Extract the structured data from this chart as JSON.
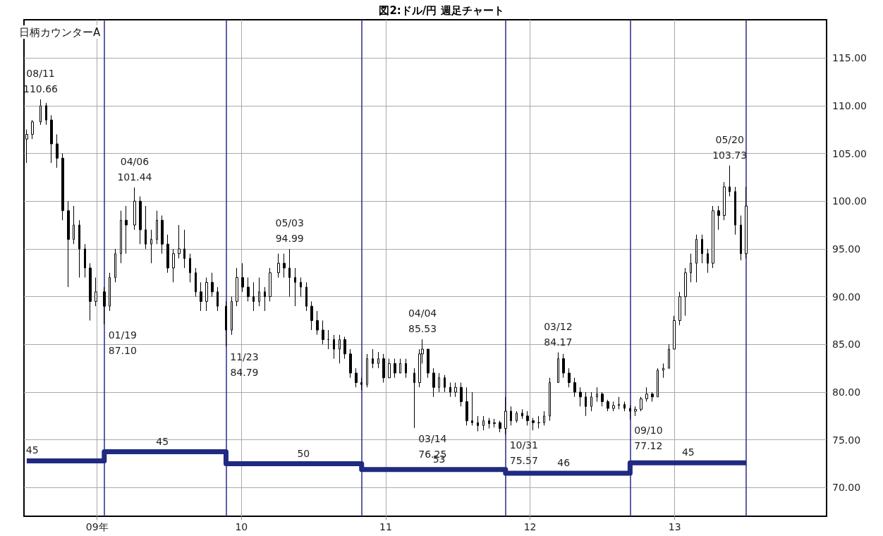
{
  "chart_data": {
    "type": "candlestick",
    "title": "図2:ドル/円 週足チャート",
    "annotations": [
      "日柄カウンターA",
      {
        "text": "08/11\n110.66",
        "x": "2008-08-11",
        "y": 110.66
      },
      {
        "text": "01/19\n87.10",
        "x": "2009-01-19",
        "y": 87.1
      },
      {
        "text": "04/06\n101.44",
        "x": "2009-04-06",
        "y": 101.44
      },
      {
        "text": "11/23\n84.79",
        "x": "2009-11-23",
        "y": 84.79
      },
      {
        "text": "05/03\n94.99",
        "x": "2010-05-03",
        "y": 94.99
      },
      {
        "text": "03/14\n76.25",
        "x": "2011-03-14",
        "y": 76.25
      },
      {
        "text": "04/04\n85.53",
        "x": "2011-04-04",
        "y": 85.53
      },
      {
        "text": "10/31\n75.57",
        "x": "2011-10-31",
        "y": 75.57
      },
      {
        "text": "03/12\n84.17",
        "x": "2012-03-12",
        "y": 84.17
      },
      {
        "text": "09/10\n77.12",
        "x": "2012-09-10",
        "y": 77.12
      },
      {
        "text": "05/20\n103.73",
        "x": "2013-05-20",
        "y": 103.73
      },
      {
        "text": "45",
        "x": "2008-07-21",
        "y": 72.8
      },
      {
        "text": "45",
        "x": "2009-06-15",
        "y": 73.75
      },
      {
        "text": "50",
        "x": "2010-06-07",
        "y": 72.5
      },
      {
        "text": "53",
        "x": "2011-05-16",
        "y": 71.9
      },
      {
        "text": "46",
        "x": "2012-03-26",
        "y": 71.5
      },
      {
        "text": "45",
        "x": "2013-02-04",
        "y": 72.6
      }
    ],
    "x": [
      "2008-07-07",
      "2008-07-21",
      "2008-08-11",
      "2008-08-25",
      "2008-09-08",
      "2008-09-22",
      "2008-10-06",
      "2008-10-20",
      "2008-11-03",
      "2008-11-17",
      "2008-12-01",
      "2008-12-15",
      "2008-12-29",
      "2009-01-19",
      "2009-02-02",
      "2009-02-16",
      "2009-03-02",
      "2009-03-16",
      "2009-04-06",
      "2009-04-20",
      "2009-05-04",
      "2009-05-18",
      "2009-06-01",
      "2009-06-15",
      "2009-06-29",
      "2009-07-13",
      "2009-07-27",
      "2009-08-10",
      "2009-08-24",
      "2009-09-07",
      "2009-09-21",
      "2009-10-05",
      "2009-10-19",
      "2009-11-02",
      "2009-11-23",
      "2009-12-07",
      "2009-12-21",
      "2010-01-04",
      "2010-01-18",
      "2010-02-01",
      "2010-02-15",
      "2010-03-01",
      "2010-03-15",
      "2010-04-05",
      "2010-04-19",
      "2010-05-03",
      "2010-05-17",
      "2010-05-31",
      "2010-06-14",
      "2010-06-28",
      "2010-07-12",
      "2010-07-26",
      "2010-08-09",
      "2010-08-23",
      "2010-09-06",
      "2010-09-20",
      "2010-10-04",
      "2010-10-18",
      "2010-11-01",
      "2010-11-15",
      "2010-11-29",
      "2010-12-13",
      "2010-12-27",
      "2011-01-10",
      "2011-01-24",
      "2011-02-07",
      "2011-02-21",
      "2011-03-14",
      "2011-03-28",
      "2011-04-04",
      "2011-04-18",
      "2011-05-02",
      "2011-05-16",
      "2011-05-30",
      "2011-06-13",
      "2011-06-27",
      "2011-07-11",
      "2011-07-25",
      "2011-08-08",
      "2011-08-22",
      "2011-09-05",
      "2011-09-19",
      "2011-10-03",
      "2011-10-17",
      "2011-10-31",
      "2011-11-14",
      "2011-11-28",
      "2011-12-12",
      "2011-12-26",
      "2012-01-09",
      "2012-01-23",
      "2012-02-06",
      "2012-02-20",
      "2012-03-12",
      "2012-03-26",
      "2012-04-09",
      "2012-04-23",
      "2012-05-07",
      "2012-05-21",
      "2012-06-04",
      "2012-06-18",
      "2012-07-02",
      "2012-07-16",
      "2012-07-30",
      "2012-08-13",
      "2012-08-27",
      "2012-09-10",
      "2012-09-24",
      "2012-10-08",
      "2012-10-22",
      "2012-11-05",
      "2012-11-19",
      "2012-12-03",
      "2012-12-17",
      "2012-12-31",
      "2013-01-14",
      "2013-01-28",
      "2013-02-11",
      "2013-02-25",
      "2013-03-11",
      "2013-03-25",
      "2013-04-08",
      "2013-04-22",
      "2013-05-06",
      "2013-05-20",
      "2013-06-03",
      "2013-06-17",
      "2013-07-01"
    ],
    "ohlc": [
      [
        106.5,
        107.5,
        104.0,
        107.0
      ],
      [
        107.0,
        108.5,
        106.5,
        108.3
      ],
      [
        108.3,
        110.66,
        108.0,
        110.0
      ],
      [
        110.0,
        110.3,
        108.0,
        108.5
      ],
      [
        108.5,
        109.0,
        104.0,
        106.0
      ],
      [
        106.0,
        107.0,
        103.5,
        104.5
      ],
      [
        104.5,
        105.0,
        98.0,
        99.0
      ],
      [
        99.0,
        100.0,
        91.0,
        96.0
      ],
      [
        96.0,
        99.5,
        95.5,
        97.5
      ],
      [
        97.5,
        98.0,
        92.0,
        95.0
      ],
      [
        95.0,
        95.5,
        92.0,
        93.0
      ],
      [
        93.0,
        93.5,
        87.5,
        89.5
      ],
      [
        89.5,
        92.0,
        89.0,
        90.5
      ],
      [
        90.5,
        91.0,
        87.1,
        89.0
      ],
      [
        89.0,
        92.5,
        88.5,
        92.0
      ],
      [
        92.0,
        95.0,
        91.5,
        94.5
      ],
      [
        94.5,
        99.0,
        93.5,
        98.0
      ],
      [
        98.0,
        99.5,
        94.5,
        97.5
      ],
      [
        97.5,
        101.44,
        97.0,
        100.0
      ],
      [
        100.0,
        100.5,
        95.5,
        97.0
      ],
      [
        97.0,
        99.5,
        95.0,
        95.5
      ],
      [
        95.5,
        97.0,
        93.5,
        96.0
      ],
      [
        96.0,
        99.0,
        95.5,
        98.0
      ],
      [
        98.0,
        98.5,
        94.5,
        95.5
      ],
      [
        95.5,
        96.5,
        92.5,
        93.0
      ],
      [
        93.0,
        95.0,
        91.5,
        94.5
      ],
      [
        94.5,
        97.5,
        94.0,
        95.0
      ],
      [
        95.0,
        97.0,
        93.0,
        94.0
      ],
      [
        94.0,
        94.5,
        91.5,
        92.5
      ],
      [
        92.5,
        93.0,
        90.0,
        90.5
      ],
      [
        90.5,
        91.5,
        88.5,
        89.5
      ],
      [
        89.5,
        92.0,
        88.5,
        91.5
      ],
      [
        91.5,
        92.5,
        90.0,
        90.5
      ],
      [
        90.5,
        91.0,
        88.5,
        89.0
      ],
      [
        89.0,
        89.5,
        84.79,
        86.5
      ],
      [
        86.5,
        90.0,
        86.0,
        89.5
      ],
      [
        89.5,
        93.0,
        89.0,
        92.0
      ],
      [
        92.0,
        93.5,
        90.5,
        91.0
      ],
      [
        91.0,
        92.0,
        89.5,
        90.0
      ],
      [
        90.0,
        91.5,
        88.5,
        89.5
      ],
      [
        89.5,
        92.0,
        89.0,
        90.5
      ],
      [
        90.5,
        91.0,
        88.5,
        90.0
      ],
      [
        90.0,
        93.0,
        89.5,
        92.5
      ],
      [
        92.5,
        94.5,
        92.0,
        93.5
      ],
      [
        93.5,
        94.5,
        92.0,
        93.0
      ],
      [
        93.0,
        94.99,
        90.0,
        92.0
      ],
      [
        92.0,
        93.0,
        89.0,
        91.5
      ],
      [
        91.5,
        92.0,
        90.0,
        91.0
      ],
      [
        91.0,
        91.5,
        88.5,
        89.0
      ],
      [
        89.0,
        89.5,
        86.5,
        87.5
      ],
      [
        87.5,
        88.5,
        86.0,
        86.5
      ],
      [
        86.5,
        87.5,
        85.0,
        85.5
      ],
      [
        85.5,
        86.5,
        84.5,
        85.5
      ],
      [
        85.5,
        86.0,
        83.5,
        84.5
      ],
      [
        84.5,
        86.0,
        83.0,
        85.5
      ],
      [
        85.5,
        85.8,
        83.5,
        84.0
      ],
      [
        84.0,
        84.5,
        81.5,
        82.0
      ],
      [
        82.0,
        82.5,
        80.5,
        81.0
      ],
      [
        81.0,
        81.5,
        80.2,
        80.8
      ],
      [
        80.8,
        84.0,
        80.5,
        83.5
      ],
      [
        83.5,
        84.5,
        82.5,
        83.0
      ],
      [
        83.0,
        84.2,
        82.5,
        83.5
      ],
      [
        83.5,
        84.0,
        81.0,
        81.5
      ],
      [
        81.5,
        83.5,
        81.5,
        83.0
      ],
      [
        83.0,
        83.5,
        81.5,
        82.0
      ],
      [
        82.0,
        83.5,
        82.0,
        83.0
      ],
      [
        83.0,
        83.5,
        81.5,
        82.0
      ],
      [
        82.0,
        82.5,
        76.25,
        81.0
      ],
      [
        81.0,
        84.5,
        80.5,
        84.0
      ],
      [
        84.0,
        85.53,
        83.0,
        84.5
      ],
      [
        84.5,
        84.5,
        81.5,
        82.0
      ],
      [
        82.0,
        82.5,
        79.5,
        80.5
      ],
      [
        80.5,
        82.0,
        80.0,
        81.5
      ],
      [
        81.5,
        81.8,
        80.0,
        80.5
      ],
      [
        80.5,
        81.0,
        79.5,
        80.0
      ],
      [
        80.0,
        81.0,
        79.5,
        80.5
      ],
      [
        80.5,
        81.0,
        78.5,
        79.0
      ],
      [
        79.0,
        80.5,
        76.5,
        77.0
      ],
      [
        77.0,
        80.0,
        76.5,
        76.8
      ],
      [
        76.8,
        77.5,
        75.9,
        76.5
      ],
      [
        76.5,
        77.5,
        76.0,
        77.0
      ],
      [
        77.0,
        77.3,
        76.2,
        76.7
      ],
      [
        76.7,
        77.2,
        76.3,
        76.8
      ],
      [
        76.8,
        77.0,
        75.8,
        76.2
      ],
      [
        76.2,
        79.5,
        75.57,
        78.0
      ],
      [
        78.0,
        78.5,
        76.5,
        77.0
      ],
      [
        77.0,
        78.0,
        76.8,
        77.8
      ],
      [
        77.8,
        78.2,
        77.2,
        77.5
      ],
      [
        77.5,
        78.0,
        76.5,
        77.0
      ],
      [
        77.0,
        77.3,
        76.0,
        76.8
      ],
      [
        76.8,
        77.5,
        76.2,
        76.8
      ],
      [
        76.8,
        78.0,
        76.5,
        77.5
      ],
      [
        77.5,
        81.5,
        77.0,
        81.0
      ],
      [
        81.0,
        84.17,
        81.0,
        83.5
      ],
      [
        83.5,
        84.0,
        81.5,
        82.0
      ],
      [
        82.0,
        82.5,
        80.5,
        81.0
      ],
      [
        81.0,
        81.5,
        79.5,
        80.0
      ],
      [
        80.0,
        80.5,
        78.5,
        79.5
      ],
      [
        79.5,
        80.0,
        77.5,
        78.5
      ],
      [
        78.5,
        80.0,
        78.0,
        79.5
      ],
      [
        79.5,
        80.5,
        79.0,
        79.8
      ],
      [
        79.8,
        80.0,
        78.5,
        79.0
      ],
      [
        79.0,
        79.2,
        78.0,
        78.3
      ],
      [
        78.3,
        79.0,
        78.0,
        78.6
      ],
      [
        78.6,
        79.5,
        78.2,
        78.7
      ],
      [
        78.7,
        79.0,
        78.0,
        78.3
      ],
      [
        78.3,
        78.6,
        77.12,
        78.0
      ],
      [
        78.0,
        78.5,
        77.5,
        78.2
      ],
      [
        78.2,
        79.5,
        78.0,
        79.3
      ],
      [
        79.3,
        80.5,
        79.0,
        79.8
      ],
      [
        79.8,
        80.0,
        79.0,
        79.5
      ],
      [
        79.5,
        82.5,
        79.5,
        82.3
      ],
      [
        82.3,
        83.0,
        81.5,
        82.5
      ],
      [
        82.5,
        85.0,
        82.5,
        84.5
      ],
      [
        84.5,
        88.0,
        84.5,
        87.5
      ],
      [
        87.5,
        90.5,
        87.0,
        90.0
      ],
      [
        90.0,
        93.0,
        88.0,
        92.5
      ],
      [
        92.5,
        94.5,
        91.5,
        93.5
      ],
      [
        93.5,
        96.5,
        91.5,
        96.0
      ],
      [
        96.0,
        96.5,
        93.5,
        94.5
      ],
      [
        94.5,
        95.0,
        92.5,
        93.5
      ],
      [
        93.5,
        99.5,
        93.0,
        99.0
      ],
      [
        99.0,
        99.5,
        97.0,
        98.5
      ],
      [
        98.5,
        102.0,
        98.0,
        101.5
      ],
      [
        101.5,
        103.73,
        100.5,
        101.0
      ],
      [
        101.0,
        101.5,
        96.5,
        97.5
      ],
      [
        97.5,
        98.5,
        93.8,
        94.5
      ],
      [
        94.5,
        101.5,
        94.0,
        99.5
      ]
    ],
    "color": "#000000",
    "series": [
      {
        "type": "step",
        "color": "#1f2a80",
        "marker": "none",
        "x": [
          "2008-07-07",
          "2009-01-19",
          "2009-11-23",
          "2010-11-01",
          "2011-10-31",
          "2012-09-10",
          "2013-07-01"
        ],
        "values": [
          72.8,
          73.75,
          72.5,
          71.9,
          71.5,
          72.6,
          72.6
        ]
      }
    ],
    "xlim": [
      "2008-06-30",
      "2014-01-20"
    ],
    "xticks": [
      {
        "value": "2009-01-01",
        "label": "09年"
      },
      {
        "value": "2010-01-01",
        "label": "10"
      },
      {
        "value": "2011-01-01",
        "label": "11"
      },
      {
        "value": "2012-01-01",
        "label": "12"
      },
      {
        "value": "2013-01-01",
        "label": "13"
      }
    ],
    "ylim": [
      67,
      119
    ],
    "yticks": [
      {
        "value": 70,
        "label": "70.00"
      },
      {
        "value": 75,
        "label": "75.00"
      },
      {
        "value": 80,
        "label": "80.00"
      },
      {
        "value": 85,
        "label": "85.00"
      },
      {
        "value": 90,
        "label": "90.00"
      },
      {
        "value": 95,
        "label": "95.00"
      },
      {
        "value": 100,
        "label": "100.00"
      },
      {
        "value": 105,
        "label": "105.00"
      },
      {
        "value": 110,
        "label": "110.00"
      },
      {
        "value": 115,
        "label": "115.00"
      }
    ],
    "ref_lines": [
      {
        "axis": "x",
        "value": "2009-01-19",
        "color": "#2a2a8a"
      },
      {
        "axis": "x",
        "value": "2009-11-23",
        "color": "#2a2a8a"
      },
      {
        "axis": "x",
        "value": "2010-11-01",
        "color": "#2a2a8a"
      },
      {
        "axis": "x",
        "value": "2011-10-31",
        "color": "#2a2a8a"
      },
      {
        "axis": "x",
        "value": "2012-09-10",
        "color": "#2a2a8a"
      },
      {
        "axis": "x",
        "value": "2013-07-01",
        "color": "#2a2a8a"
      }
    ],
    "grid": true
  }
}
